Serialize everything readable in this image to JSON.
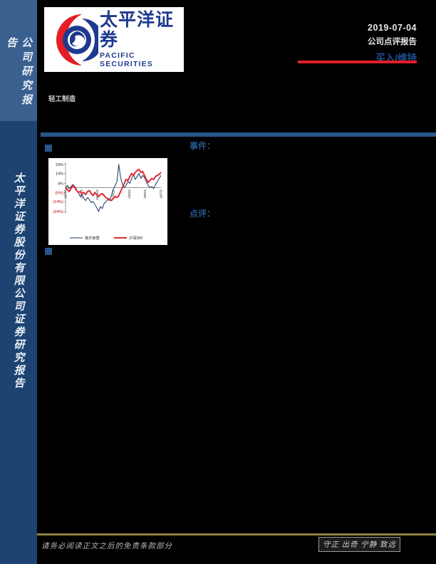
{
  "sidebar": {
    "top_label": "公司研究报告",
    "bottom_label": "太平洋证券股份有限公司证券研究报告",
    "top_bg": "#3a6090",
    "bottom_bg": "#1c4372"
  },
  "header": {
    "logo_cn": "太平洋证券",
    "logo_en": "PACIFIC SECURITIES",
    "logo_blue": "#1e3a8f",
    "logo_red": "#e31e26",
    "date": "2019-07-04",
    "report_type": "公司点评报告",
    "rating": "买入/维持",
    "rating_color": "#1f4e94",
    "accent_red": "#e31e26"
  },
  "sector_label": "轻工制造",
  "sections": {
    "event_label": "事件：",
    "comment_label": "点评："
  },
  "chart_data": {
    "type": "line",
    "ylim": [
      -26,
      25
    ],
    "y_ticks": [
      {
        "label": "23%",
        "value": 23
      },
      {
        "label": "14%",
        "value": 14
      },
      {
        "label": "4%",
        "value": 4
      },
      {
        "label": "(5%)",
        "value": -5
      },
      {
        "label": "(14%)",
        "value": -14
      },
      {
        "label": "(24%)",
        "value": -24
      }
    ],
    "neg_tick_color": "#c00000",
    "x_ticks": [
      "18/7/3",
      "18/9/3",
      "18/11/3",
      "19/1/3",
      "19/3/3",
      "19/5/3",
      "19/7/3"
    ],
    "legend_position": "bottom",
    "grid": false,
    "series": [
      {
        "name": "我乐家居",
        "color": "#17375e",
        "width": 1,
        "values": [
          0,
          2,
          -1,
          1,
          3,
          1,
          -2,
          -5,
          -9,
          -7,
          -11,
          -13,
          -10,
          -12,
          -15,
          -14,
          -17,
          -20,
          -24,
          -19,
          -21,
          -16,
          -14,
          -12,
          -13,
          -8,
          -2,
          2,
          6,
          23,
          10,
          3,
          0,
          2,
          6,
          4,
          9,
          13,
          8,
          11,
          14,
          9,
          12,
          10,
          6,
          2,
          0,
          1,
          -1,
          3,
          6,
          9,
          12
        ]
      },
      {
        "name": "沪深300",
        "color": "#e02b35",
        "width": 2,
        "values": [
          0,
          -2,
          -4,
          -1,
          2,
          0,
          -3,
          -5,
          -4,
          -6,
          -5,
          -7,
          -4,
          -3,
          -6,
          -8,
          -5,
          -7,
          -9,
          -7,
          -6,
          -8,
          -10,
          -11,
          -12,
          -13,
          -11,
          -9,
          -10,
          -8,
          -4,
          0,
          4,
          8,
          7,
          11,
          14,
          12,
          15,
          17,
          18,
          15,
          16,
          12,
          8,
          5,
          7,
          9,
          8,
          11,
          12,
          13,
          15
        ]
      }
    ]
  },
  "footer": {
    "disclaimer": "请务必阅读正文之后的免责条款部分",
    "slogan": "守正 出奇 宁静 致远",
    "line_color": "#8f8140"
  }
}
